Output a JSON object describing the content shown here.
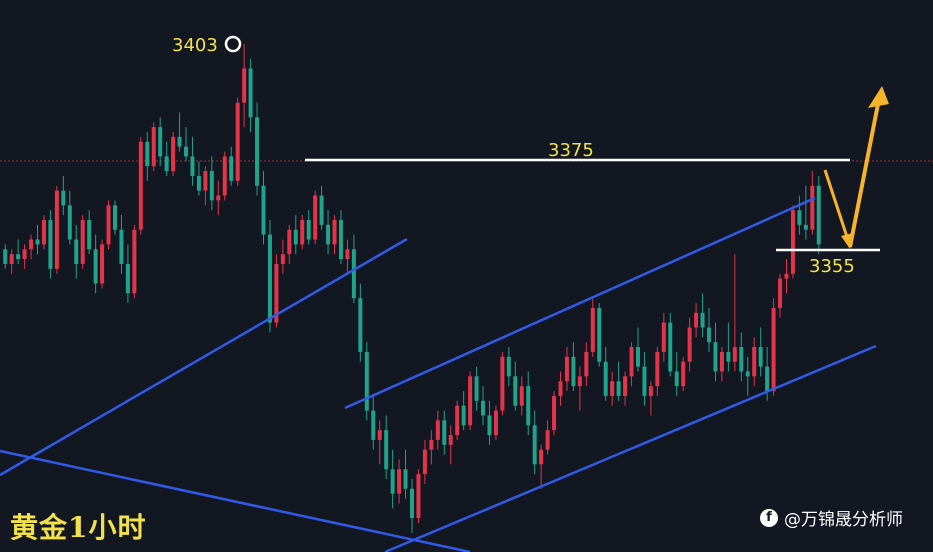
{
  "title": "黄金1小时",
  "watermark": "@万锦晟分析师",
  "chart_data": {
    "type": "candlestick",
    "y_range": [
      3305,
      3410
    ],
    "colors": {
      "up": "#e3344a",
      "down": "#1fa38a",
      "trendline": "#2f5be8",
      "level": "#ffffff",
      "arrow": "#f5b42a",
      "text": "#f2e14c"
    },
    "annotations": [
      {
        "label": "3403",
        "price": 3403,
        "marker": "circle"
      },
      {
        "label": "3375",
        "price": 3375,
        "type": "horizontal-line"
      },
      {
        "label": "3355",
        "price": 3355,
        "type": "horizontal-line"
      }
    ],
    "projection": {
      "from": 3375,
      "down_to": 3355,
      "then": "up"
    },
    "candles": [
      [
        3361,
        3362,
        3357,
        3358
      ],
      [
        3358,
        3361,
        3356,
        3360
      ],
      [
        3360,
        3363,
        3358,
        3359
      ],
      [
        3359,
        3362,
        3357,
        3361
      ],
      [
        3361,
        3364,
        3359,
        3363
      ],
      [
        3363,
        3366,
        3360,
        3362
      ],
      [
        3362,
        3368,
        3361,
        3367
      ],
      [
        3367,
        3369,
        3355,
        3357
      ],
      [
        3357,
        3374,
        3356,
        3373
      ],
      [
        3373,
        3376,
        3368,
        3370
      ],
      [
        3370,
        3373,
        3362,
        3363
      ],
      [
        3363,
        3366,
        3355,
        3358
      ],
      [
        3358,
        3368,
        3357,
        3367
      ],
      [
        3367,
        3369,
        3360,
        3361
      ],
      [
        3361,
        3364,
        3352,
        3354
      ],
      [
        3354,
        3363,
        3353,
        3362
      ],
      [
        3362,
        3371,
        3361,
        3370
      ],
      [
        3370,
        3371,
        3364,
        3365
      ],
      [
        3365,
        3368,
        3356,
        3358
      ],
      [
        3358,
        3362,
        3350,
        3352
      ],
      [
        3352,
        3366,
        3351,
        3365
      ],
      [
        3365,
        3384,
        3364,
        3383
      ],
      [
        3383,
        3385,
        3375,
        3378
      ],
      [
        3378,
        3387,
        3377,
        3386
      ],
      [
        3386,
        3388,
        3378,
        3380
      ],
      [
        3380,
        3383,
        3376,
        3377
      ],
      [
        3377,
        3385,
        3376,
        3384
      ],
      [
        3384,
        3389,
        3381,
        3382
      ],
      [
        3382,
        3386,
        3379,
        3380
      ],
      [
        3380,
        3384,
        3374,
        3376
      ],
      [
        3376,
        3379,
        3372,
        3373
      ],
      [
        3373,
        3378,
        3370,
        3377
      ],
      [
        3377,
        3380,
        3369,
        3371
      ],
      [
        3371,
        3375,
        3368,
        3372
      ],
      [
        3372,
        3381,
        3371,
        3380
      ],
      [
        3380,
        3382,
        3374,
        3375
      ],
      [
        3375,
        3392,
        3374,
        3391
      ],
      [
        3391,
        3403,
        3386,
        3398
      ],
      [
        3398,
        3400,
        3385,
        3388
      ],
      [
        3388,
        3391,
        3372,
        3374
      ],
      [
        3374,
        3377,
        3362,
        3364
      ],
      [
        3364,
        3367,
        3344,
        3346
      ],
      [
        3346,
        3360,
        3345,
        3358
      ],
      [
        3358,
        3363,
        3356,
        3360
      ],
      [
        3360,
        3366,
        3358,
        3365
      ],
      [
        3365,
        3368,
        3360,
        3362
      ],
      [
        3362,
        3368,
        3361,
        3367
      ],
      [
        3367,
        3369,
        3362,
        3363
      ],
      [
        3363,
        3373,
        3362,
        3372
      ],
      [
        3372,
        3374,
        3365,
        3366
      ],
      [
        3366,
        3369,
        3360,
        3362
      ],
      [
        3362,
        3368,
        3360,
        3367
      ],
      [
        3367,
        3369,
        3358,
        3359
      ],
      [
        3359,
        3363,
        3356,
        3361
      ],
      [
        3361,
        3364,
        3350,
        3351
      ],
      [
        3351,
        3354,
        3338,
        3340
      ],
      [
        3340,
        3342,
        3326,
        3328
      ],
      [
        3328,
        3331,
        3320,
        3322
      ],
      [
        3322,
        3326,
        3317,
        3324
      ],
      [
        3324,
        3327,
        3314,
        3316
      ],
      [
        3316,
        3320,
        3308,
        3311
      ],
      [
        3311,
        3318,
        3309,
        3316
      ],
      [
        3316,
        3320,
        3310,
        3312
      ],
      [
        3312,
        3314,
        3303,
        3306
      ],
      [
        3306,
        3316,
        3305,
        3315
      ],
      [
        3315,
        3322,
        3313,
        3320
      ],
      [
        3320,
        3324,
        3317,
        3322
      ],
      [
        3322,
        3328,
        3320,
        3326
      ],
      [
        3326,
        3328,
        3319,
        3321
      ],
      [
        3321,
        3325,
        3317,
        3323
      ],
      [
        3323,
        3330,
        3322,
        3329
      ],
      [
        3329,
        3332,
        3324,
        3325
      ],
      [
        3325,
        3336,
        3324,
        3335
      ],
      [
        3335,
        3337,
        3328,
        3330
      ],
      [
        3330,
        3333,
        3325,
        3327
      ],
      [
        3327,
        3330,
        3321,
        3323
      ],
      [
        3323,
        3329,
        3322,
        3328
      ],
      [
        3328,
        3340,
        3327,
        3339
      ],
      [
        3339,
        3341,
        3333,
        3335
      ],
      [
        3335,
        3338,
        3328,
        3329
      ],
      [
        3329,
        3335,
        3327,
        3333
      ],
      [
        3333,
        3336,
        3323,
        3325
      ],
      [
        3325,
        3328,
        3315,
        3317
      ],
      [
        3317,
        3321,
        3312,
        3320
      ],
      [
        3320,
        3326,
        3319,
        3324
      ],
      [
        3324,
        3332,
        3323,
        3331
      ],
      [
        3331,
        3336,
        3329,
        3334
      ],
      [
        3334,
        3341,
        3332,
        3339
      ],
      [
        3339,
        3342,
        3332,
        3333
      ],
      [
        3333,
        3337,
        3328,
        3335
      ],
      [
        3335,
        3342,
        3333,
        3340
      ],
      [
        3340,
        3351,
        3339,
        3349
      ],
      [
        3349,
        3350,
        3337,
        3338
      ],
      [
        3338,
        3341,
        3330,
        3331
      ],
      [
        3331,
        3336,
        3329,
        3334
      ],
      [
        3334,
        3338,
        3330,
        3331
      ],
      [
        3331,
        3336,
        3329,
        3335
      ],
      [
        3335,
        3342,
        3333,
        3341
      ],
      [
        3341,
        3345,
        3336,
        3337
      ],
      [
        3337,
        3340,
        3329,
        3331
      ],
      [
        3331,
        3334,
        3327,
        3333
      ],
      [
        3333,
        3341,
        3331,
        3340
      ],
      [
        3340,
        3348,
        3338,
        3346
      ],
      [
        3346,
        3348,
        3335,
        3336
      ],
      [
        3336,
        3340,
        3331,
        3333
      ],
      [
        3333,
        3339,
        3332,
        3338
      ],
      [
        3338,
        3347,
        3336,
        3345
      ],
      [
        3345,
        3350,
        3343,
        3348
      ],
      [
        3348,
        3352,
        3343,
        3345
      ],
      [
        3345,
        3349,
        3340,
        3342
      ],
      [
        3342,
        3346,
        3334,
        3336
      ],
      [
        3336,
        3341,
        3334,
        3340
      ],
      [
        3340,
        3346,
        3336,
        3338
      ],
      [
        3338,
        3360,
        3336,
        3341
      ],
      [
        3341,
        3344,
        3334,
        3336
      ],
      [
        3336,
        3339,
        3331,
        3335
      ],
      [
        3335,
        3343,
        3333,
        3341
      ],
      [
        3341,
        3345,
        3335,
        3337
      ],
      [
        3337,
        3341,
        3330,
        3332
      ],
      [
        3332,
        3351,
        3331,
        3349
      ],
      [
        3349,
        3356,
        3347,
        3355
      ],
      [
        3355,
        3359,
        3352,
        3356
      ],
      [
        3356,
        3370,
        3355,
        3369
      ],
      [
        3369,
        3372,
        3364,
        3366
      ],
      [
        3366,
        3374,
        3363,
        3365
      ],
      [
        3365,
        3377,
        3364,
        3374
      ],
      [
        3374,
        3376,
        3360,
        3362
      ]
    ]
  }
}
